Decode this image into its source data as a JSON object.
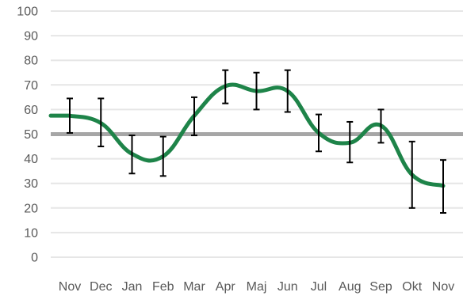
{
  "chart_data": {
    "type": "line",
    "categories": [
      "Nov",
      "Dec",
      "Jan",
      "Feb",
      "Mar",
      "Apr",
      "Maj",
      "Jun",
      "Jul",
      "Aug",
      "Sep",
      "Okt",
      "Nov"
    ],
    "series": [
      {
        "values": [
          57.5,
          54.5,
          42,
          41,
          57.5,
          69.5,
          67.5,
          67.5,
          50.5,
          46.5,
          53.5,
          33.5,
          29
        ],
        "error_low": [
          50.5,
          45,
          34,
          33,
          49.5,
          62.5,
          60,
          59,
          43,
          38.5,
          46.5,
          20,
          18
        ],
        "error_high": [
          64.5,
          64.5,
          49.5,
          49,
          65,
          76,
          75,
          76,
          58,
          55,
          60,
          47,
          39.5
        ],
        "color": "#1e8449",
        "smooth": true
      }
    ],
    "reference_line": {
      "y": 50,
      "color": "#a6a6a6"
    },
    "yticks": [
      "0",
      "10",
      "20",
      "30",
      "40",
      "50",
      "60",
      "70",
      "80",
      "90",
      "100"
    ],
    "ylim": [
      0,
      100
    ],
    "grid": true,
    "gridline_color": "#e6e6e6",
    "errorbar_color": "#000000",
    "title": "",
    "xlabel": "",
    "ylabel": ""
  }
}
